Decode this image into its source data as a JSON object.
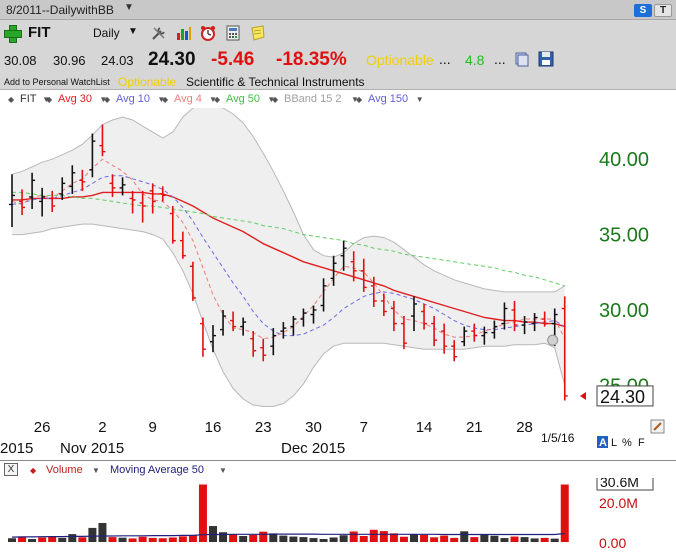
{
  "window": {
    "title": "8/2011--DailywithBB",
    "s_button": "S",
    "t_button": "T"
  },
  "toolbar": {
    "symbol": "FIT",
    "period": "Daily",
    "icons": [
      "add-symbol-icon",
      "tools-icon",
      "bar-chart-icon",
      "alarm-clock-icon",
      "calculator-icon",
      "note-icon",
      "layers-icon",
      "save-icon"
    ]
  },
  "quote": {
    "open": "30.08",
    "high": "30.96",
    "low": "24.03",
    "last": "24.30",
    "change": "-5.46",
    "change_pct": "-18.35%",
    "optionable": "Optionable",
    "dots1": "...",
    "value": "4.8",
    "dots2": "..."
  },
  "info": {
    "watchlist_link": "Add to Personal WatchList",
    "optionable": "Optionable",
    "sector": "Scientific & Technical Instruments"
  },
  "legend": [
    {
      "label": "FIT",
      "color": "#333333"
    },
    {
      "label": "Avg 30",
      "color": "#e02020"
    },
    {
      "label": "Avg 10",
      "color": "#6060e0"
    },
    {
      "label": "Avg 4",
      "color": "#f08080"
    },
    {
      "label": "Avg 50",
      "color": "#40c040"
    },
    {
      "label": "BBand 15 2",
      "color": "#a0a0a0"
    },
    {
      "label": "Avg 150",
      "color": "#6060e0"
    }
  ],
  "colors": {
    "up": "#111111",
    "down": "#e01010",
    "axis_green": "#1a7a1a",
    "band_fill": "#efefef",
    "band_line": "#b8b8b8"
  },
  "chart_data": [
    {
      "type": "ohlc",
      "symbol": "FIT",
      "ylim": [
        23.5,
        43
      ],
      "y_ticks": [
        "40.00",
        "35.00",
        "30.00",
        "25.00"
      ],
      "x_ticks": [
        "26",
        "2",
        "9",
        "16",
        "23",
        "30",
        "7",
        "14",
        "21",
        "28"
      ],
      "month_labels": [
        "2015",
        "Nov 2015",
        "Dec 2015"
      ],
      "last_price_label": "24.30",
      "date_label": "1/5/16",
      "bars": [
        {
          "o": 37.0,
          "h": 39.0,
          "l": 35.5,
          "c": 37.6
        },
        {
          "o": 37.2,
          "h": 38.0,
          "l": 36.3,
          "c": 36.8
        },
        {
          "o": 37.5,
          "h": 39.1,
          "l": 36.7,
          "c": 38.6
        },
        {
          "o": 37.2,
          "h": 38.1,
          "l": 36.2,
          "c": 37.5
        },
        {
          "o": 37.4,
          "h": 37.9,
          "l": 36.5,
          "c": 36.9
        },
        {
          "o": 37.7,
          "h": 38.8,
          "l": 37.3,
          "c": 38.4
        },
        {
          "o": 38.2,
          "h": 39.6,
          "l": 37.7,
          "c": 39.1
        },
        {
          "o": 38.6,
          "h": 39.3,
          "l": 37.9,
          "c": 38.5
        },
        {
          "o": 39.3,
          "h": 41.7,
          "l": 38.8,
          "c": 41.2
        },
        {
          "o": 40.9,
          "h": 42.3,
          "l": 40.2,
          "c": 40.5
        },
        {
          "o": 38.4,
          "h": 39.0,
          "l": 37.5,
          "c": 38.1
        },
        {
          "o": 38.1,
          "h": 38.8,
          "l": 37.6,
          "c": 38.3
        },
        {
          "o": 37.4,
          "h": 37.9,
          "l": 36.4,
          "c": 37.3
        },
        {
          "o": 37.1,
          "h": 37.9,
          "l": 35.8,
          "c": 36.9
        },
        {
          "o": 37.9,
          "h": 38.4,
          "l": 36.4,
          "c": 37.2
        },
        {
          "o": 37.7,
          "h": 38.2,
          "l": 37.2,
          "c": 37.6
        },
        {
          "o": 36.4,
          "h": 36.9,
          "l": 34.4,
          "c": 34.6
        },
        {
          "o": 34.6,
          "h": 35.2,
          "l": 33.4,
          "c": 33.6
        },
        {
          "o": 32.9,
          "h": 33.2,
          "l": 30.6,
          "c": 30.8
        },
        {
          "o": 29.1,
          "h": 29.5,
          "l": 26.9,
          "c": 27.4
        },
        {
          "o": 27.9,
          "h": 29.0,
          "l": 27.2,
          "c": 28.3
        },
        {
          "o": 28.7,
          "h": 30.0,
          "l": 28.3,
          "c": 29.6
        },
        {
          "o": 29.3,
          "h": 29.9,
          "l": 28.6,
          "c": 28.9
        },
        {
          "o": 28.9,
          "h": 29.5,
          "l": 28.3,
          "c": 29.2
        },
        {
          "o": 28.1,
          "h": 28.6,
          "l": 26.9,
          "c": 27.3
        },
        {
          "o": 27.5,
          "h": 28.1,
          "l": 26.6,
          "c": 27.0
        },
        {
          "o": 27.6,
          "h": 28.8,
          "l": 27.0,
          "c": 28.3
        },
        {
          "o": 28.6,
          "h": 29.2,
          "l": 28.1,
          "c": 28.8
        },
        {
          "o": 28.9,
          "h": 29.6,
          "l": 28.3,
          "c": 29.4
        },
        {
          "o": 29.4,
          "h": 30.1,
          "l": 28.9,
          "c": 29.8
        },
        {
          "o": 29.7,
          "h": 30.3,
          "l": 29.1,
          "c": 30.0
        },
        {
          "o": 30.3,
          "h": 32.1,
          "l": 29.9,
          "c": 31.6
        },
        {
          "o": 32.1,
          "h": 33.6,
          "l": 31.6,
          "c": 33.1
        },
        {
          "o": 33.6,
          "h": 34.6,
          "l": 32.6,
          "c": 34.1
        },
        {
          "o": 33.2,
          "h": 33.9,
          "l": 31.9,
          "c": 32.6
        },
        {
          "o": 32.6,
          "h": 33.4,
          "l": 31.2,
          "c": 31.5
        },
        {
          "o": 31.6,
          "h": 32.2,
          "l": 30.2,
          "c": 30.6
        },
        {
          "o": 30.6,
          "h": 31.1,
          "l": 29.6,
          "c": 29.9
        },
        {
          "o": 30.1,
          "h": 30.6,
          "l": 28.6,
          "c": 29.1
        },
        {
          "o": 29.1,
          "h": 29.6,
          "l": 27.4,
          "c": 27.8
        },
        {
          "o": 29.6,
          "h": 30.9,
          "l": 28.6,
          "c": 30.4
        },
        {
          "o": 29.9,
          "h": 30.4,
          "l": 28.7,
          "c": 29.1
        },
        {
          "o": 29.1,
          "h": 29.6,
          "l": 27.6,
          "c": 28.0
        },
        {
          "o": 28.6,
          "h": 29.1,
          "l": 27.1,
          "c": 27.6
        },
        {
          "o": 27.6,
          "h": 28.0,
          "l": 26.6,
          "c": 26.9
        },
        {
          "o": 27.9,
          "h": 28.9,
          "l": 27.6,
          "c": 28.6
        },
        {
          "o": 28.6,
          "h": 29.1,
          "l": 27.9,
          "c": 28.3
        },
        {
          "o": 28.3,
          "h": 28.9,
          "l": 27.7,
          "c": 28.5
        },
        {
          "o": 28.5,
          "h": 29.3,
          "l": 28.1,
          "c": 28.9
        },
        {
          "o": 29.1,
          "h": 30.5,
          "l": 28.7,
          "c": 30.1
        },
        {
          "o": 30.0,
          "h": 30.6,
          "l": 28.6,
          "c": 29.0
        },
        {
          "o": 29.0,
          "h": 29.6,
          "l": 28.4,
          "c": 29.2
        },
        {
          "o": 29.1,
          "h": 29.8,
          "l": 28.6,
          "c": 29.5
        },
        {
          "o": 29.4,
          "h": 29.9,
          "l": 28.9,
          "c": 29.1
        },
        {
          "o": 29.1,
          "h": 30.1,
          "l": 27.6,
          "c": 29.7
        },
        {
          "o": 30.1,
          "h": 30.9,
          "l": 24.0,
          "c": 24.3
        }
      ],
      "series": [
        {
          "name": "Avg 30",
          "style": "solid",
          "values": [
            37.3,
            37.3,
            37.4,
            37.4,
            37.4,
            37.4,
            37.5,
            37.5,
            37.6,
            37.8,
            37.8,
            37.8,
            37.8,
            37.8,
            37.7,
            37.7,
            37.5,
            37.2,
            36.9,
            36.5,
            36.1,
            35.8,
            35.5,
            35.2,
            34.8,
            34.4,
            34.1,
            33.8,
            33.5,
            33.2,
            33.0,
            32.8,
            32.6,
            32.4,
            32.2,
            32.0,
            31.8,
            31.6,
            31.3,
            31.1,
            30.9,
            30.7,
            30.5,
            30.3,
            30.1,
            29.9,
            29.7,
            29.5,
            29.4,
            29.3,
            29.3,
            29.2,
            29.2,
            29.1,
            29.1,
            28.9
          ]
        },
        {
          "name": "Avg 10",
          "style": "dashed",
          "values": [
            37.0,
            37.1,
            37.3,
            37.4,
            37.4,
            37.6,
            37.8,
            38.0,
            38.4,
            38.8,
            38.9,
            38.9,
            38.7,
            38.5,
            38.3,
            38.0,
            37.5,
            36.8,
            35.9,
            34.8,
            33.8,
            32.8,
            31.8,
            30.9,
            29.9,
            29.1,
            28.6,
            28.3,
            28.3,
            28.4,
            28.7,
            29.0,
            29.5,
            30.1,
            30.5,
            30.9,
            31.1,
            31.2,
            31.1,
            30.9,
            30.7,
            30.4,
            30.1,
            29.7,
            29.3,
            29.0,
            28.8,
            28.7,
            28.7,
            28.8,
            28.9,
            29.0,
            29.1,
            29.2,
            29.3,
            28.9
          ]
        },
        {
          "name": "Avg 4",
          "style": "dashed",
          "values": [
            37.2,
            37.0,
            37.5,
            37.6,
            37.4,
            37.9,
            38.4,
            38.7,
            39.4,
            40.0,
            39.6,
            39.2,
            38.6,
            37.7,
            37.3,
            37.2,
            36.6,
            35.8,
            34.6,
            32.8,
            31.0,
            29.7,
            28.8,
            28.7,
            28.5,
            28.1,
            28.2,
            28.5,
            28.9,
            29.6,
            30.3,
            31.2,
            32.1,
            32.9,
            32.8,
            32.5,
            31.8,
            30.9,
            30.0,
            29.4,
            29.3,
            29.1,
            28.8,
            28.4,
            28.2,
            28.2,
            28.3,
            28.6,
            28.8,
            29.1,
            29.2,
            29.4,
            29.4,
            29.4,
            29.4,
            28.1
          ]
        },
        {
          "name": "Avg 50",
          "style": "dashed",
          "values": [
            37.8,
            37.8,
            37.7,
            37.6,
            37.6,
            37.6,
            37.5,
            37.4,
            37.4,
            37.3,
            37.2,
            37.1,
            37.0,
            36.9,
            36.9,
            36.8,
            36.7,
            36.6,
            36.5,
            36.4,
            36.2,
            36.1,
            36.0,
            35.9,
            35.8,
            35.6,
            35.5,
            35.4,
            35.2,
            35.0,
            34.9,
            34.8,
            34.7,
            34.6,
            34.4,
            34.3,
            34.1,
            34.0,
            33.9,
            33.7,
            33.6,
            33.5,
            33.4,
            33.3,
            33.2,
            33.1,
            33.0,
            32.9,
            32.8,
            32.6,
            32.5,
            32.3,
            32.2,
            32.0,
            31.8,
            31.6
          ]
        },
        {
          "name": "BBand upper",
          "style": "band",
          "values": [
            39.0,
            39.2,
            39.5,
            39.8,
            40.0,
            40.3,
            40.6,
            41.0,
            41.6,
            42.3,
            42.6,
            42.8,
            42.6,
            42.2,
            41.8,
            41.4,
            41.8,
            42.8,
            43.4,
            43.6,
            43.6,
            43.4,
            43.0,
            42.4,
            41.5,
            40.4,
            39.2,
            37.9,
            36.5,
            35.0,
            34.0,
            33.6,
            33.5,
            33.8,
            34.4,
            34.8,
            34.9,
            34.8,
            34.5,
            34.0,
            33.5,
            33.0,
            32.6,
            32.3,
            32.0,
            31.8,
            31.6,
            31.4,
            31.3,
            31.2,
            31.2,
            31.2,
            31.2,
            31.2,
            31.2,
            31.6
          ]
        },
        {
          "name": "BBand lower",
          "style": "band",
          "values": [
            35.0,
            35.0,
            35.1,
            35.2,
            35.4,
            35.5,
            35.6,
            35.7,
            35.7,
            35.6,
            35.5,
            35.4,
            35.3,
            35.2,
            35.0,
            34.7,
            33.8,
            32.6,
            31.1,
            29.2,
            27.4,
            25.9,
            24.8,
            24.1,
            23.7,
            23.6,
            23.6,
            23.8,
            24.3,
            25.1,
            26.2,
            27.1,
            27.6,
            27.8,
            27.8,
            27.8,
            27.8,
            27.8,
            27.7,
            27.6,
            27.5,
            27.4,
            27.4,
            27.4,
            27.4,
            27.4,
            27.5,
            27.6,
            27.6,
            27.6,
            27.7,
            27.7,
            27.7,
            27.8,
            27.5,
            25.0
          ]
        }
      ]
    },
    {
      "type": "bar",
      "name": "Volume",
      "y_ticks": [
        "30.6M",
        "20.0M",
        "0.00"
      ],
      "ylim": [
        0,
        33
      ],
      "values": [
        2.0,
        2.5,
        1.6,
        2.4,
        3.0,
        2.2,
        4.2,
        2.5,
        7.5,
        10.1,
        2.6,
        2.3,
        1.9,
        2.8,
        2.2,
        2.0,
        2.4,
        3.0,
        3.6,
        30.6,
        8.5,
        5.2,
        4.0,
        3.2,
        3.8,
        5.5,
        4.6,
        3.4,
        2.9,
        2.6,
        2.1,
        1.6,
        2.4,
        3.6,
        5.6,
        3.2,
        6.5,
        5.8,
        4.6,
        2.8,
        4.0,
        3.8,
        2.5,
        3.4,
        2.2,
        5.7,
        2.6,
        3.9,
        3.3,
        2.1,
        2.9,
        2.6,
        1.9,
        2.2,
        1.8,
        30.6
      ],
      "directions": [
        "up",
        "down",
        "up",
        "down",
        "down",
        "up",
        "up",
        "down",
        "up",
        "up",
        "down",
        "up",
        "down",
        "down",
        "down",
        "down",
        "down",
        "down",
        "down",
        "down",
        "up",
        "up",
        "down",
        "up",
        "down",
        "down",
        "up",
        "up",
        "up",
        "up",
        "up",
        "up",
        "up",
        "up",
        "down",
        "down",
        "down",
        "down",
        "down",
        "down",
        "up",
        "down",
        "down",
        "down",
        "down",
        "up",
        "down",
        "up",
        "up",
        "up",
        "down",
        "up",
        "up",
        "down",
        "up",
        "down"
      ],
      "moving_average_50": [
        2.6,
        2.7,
        2.7,
        2.8,
        2.9,
        2.9,
        3.0,
        3.0,
        3.1,
        3.2,
        3.2,
        3.3,
        3.3,
        3.3,
        3.4,
        3.4,
        3.4,
        3.5,
        3.5,
        3.9,
        4.0,
        4.0,
        4.1,
        4.1,
        4.1,
        4.1,
        4.2,
        4.2,
        4.2,
        4.2,
        4.2,
        4.1,
        4.1,
        4.1,
        4.1,
        4.1,
        4.1,
        4.1,
        4.1,
        4.1,
        4.1,
        4.1,
        4.1,
        4.0,
        4.0,
        4.0,
        4.0,
        4.0,
        4.0,
        4.0,
        4.0,
        4.0,
        4.0,
        4.0,
        4.0,
        4.5
      ]
    }
  ],
  "volume_panel": {
    "close_label": "X",
    "volume_label": "Volume",
    "ma_label": "Moving Average 50",
    "volume_color": "#e01010",
    "ma_color": "#202080"
  },
  "axis_tools": {
    "a": "A",
    "l": "L",
    "pct": "%",
    "f": "F"
  }
}
